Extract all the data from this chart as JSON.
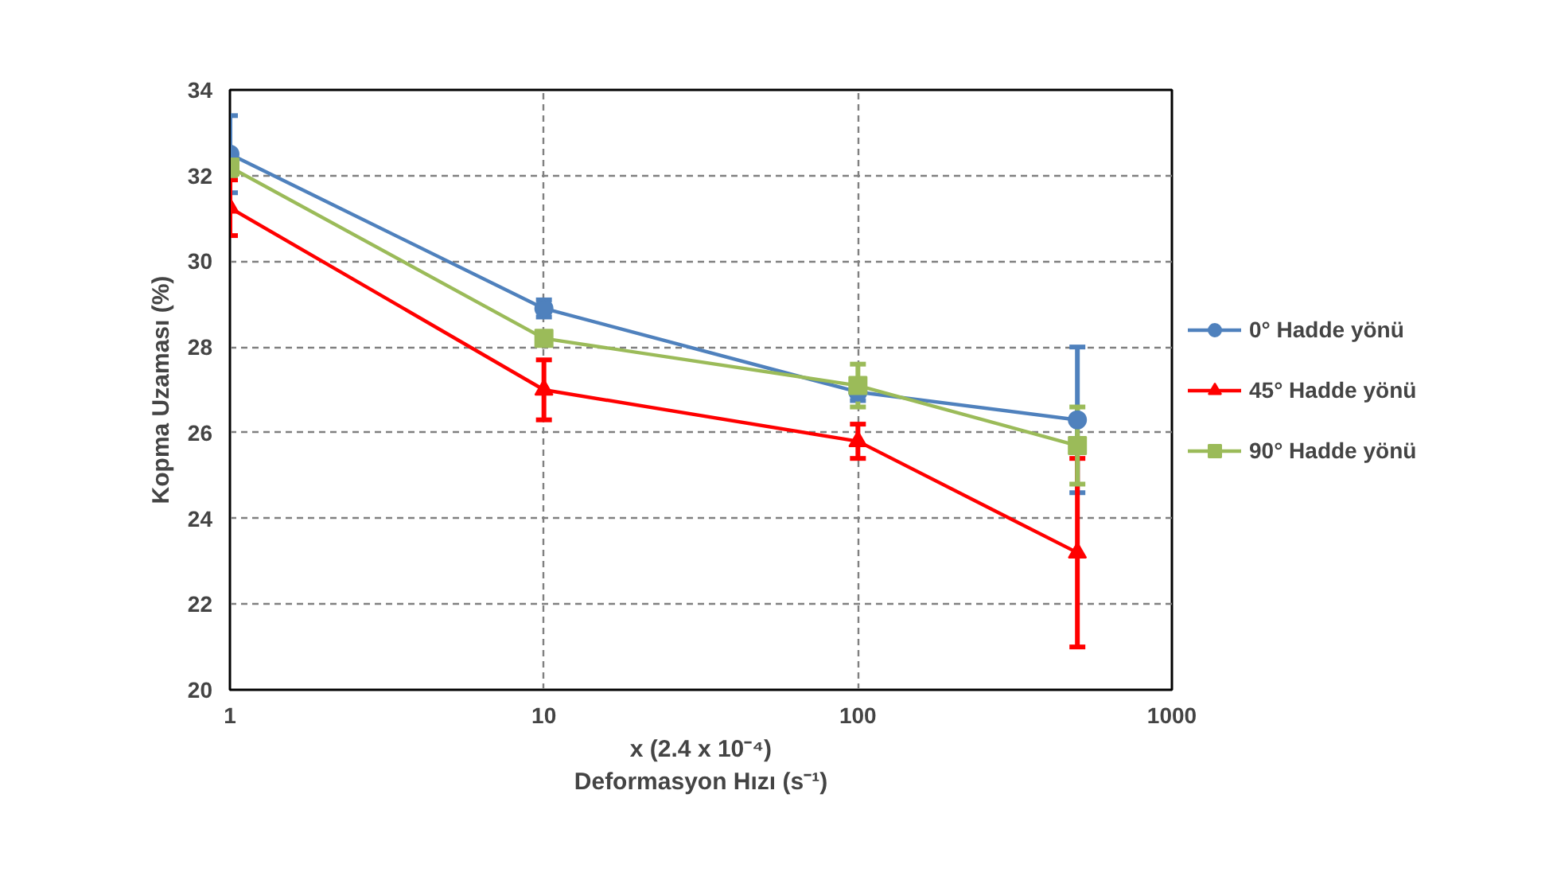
{
  "chart_data": {
    "type": "line",
    "xlabel": "x (2.4 x 10⁻⁴)\nDeformasyon Hızı (s⁻¹)",
    "ylabel": "Kopma Uzaması (%)",
    "x": [
      1,
      10,
      100,
      500
    ],
    "log": "x",
    "xlim": [
      1,
      1000
    ],
    "xticks": [
      1,
      10,
      100,
      1000
    ],
    "ylim": [
      20,
      34
    ],
    "yticks": [
      20,
      22,
      24,
      26,
      28,
      30,
      32,
      34
    ],
    "grid": true,
    "legend": "right",
    "series": [
      {
        "name": "0° Hadde yönü",
        "color": "#4f81bd",
        "marker": "circle",
        "values": [
          32.5,
          28.9,
          26.95,
          26.3
        ],
        "errors": [
          0.9,
          0.2,
          0.2,
          1.7
        ]
      },
      {
        "name": "45° Hadde yönü",
        "color": "#ff0000",
        "marker": "triangle",
        "values": [
          31.25,
          27.0,
          25.8,
          23.2
        ],
        "errors": [
          0.65,
          0.7,
          0.4,
          2.2
        ]
      },
      {
        "name": "90° Hadde yönü",
        "color": "#9bbb59",
        "marker": "square",
        "values": [
          32.2,
          28.2,
          27.1,
          25.7
        ],
        "errors": [
          0.2,
          0.1,
          0.5,
          0.9
        ]
      }
    ]
  }
}
